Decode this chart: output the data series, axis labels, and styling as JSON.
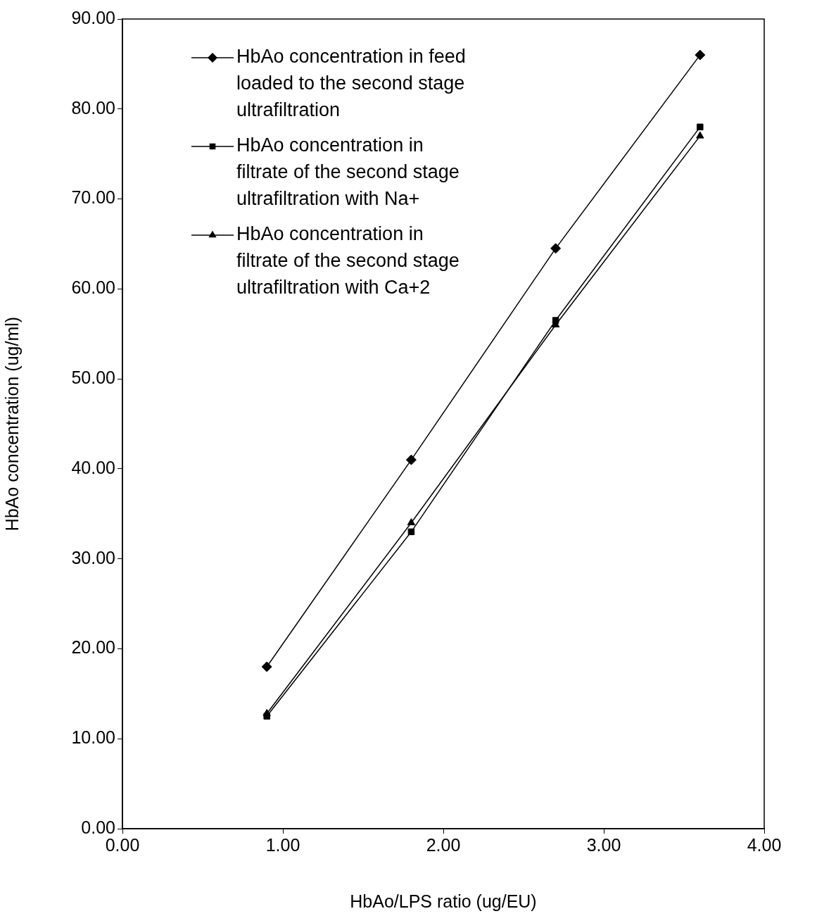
{
  "chart_data": {
    "type": "line",
    "xlabel": "HbAo/LPS ratio (ug/EU)",
    "ylabel": "HbAo concentration (ug/ml)",
    "xlim": [
      0,
      4
    ],
    "xticks": [
      {
        "value": 0,
        "label": "0.00"
      },
      {
        "value": 1,
        "label": "1.00"
      },
      {
        "value": 2,
        "label": "2.00"
      },
      {
        "value": 3,
        "label": "3.00"
      },
      {
        "value": 4,
        "label": "4.00"
      }
    ],
    "ylim": [
      0,
      90
    ],
    "yticks": [
      {
        "value": 0,
        "label": "0.00"
      },
      {
        "value": 10,
        "label": "10.00"
      },
      {
        "value": 20,
        "label": "20.00"
      },
      {
        "value": 30,
        "label": "30.00"
      },
      {
        "value": 40,
        "label": "40.00"
      },
      {
        "value": 50,
        "label": "50.00"
      },
      {
        "value": 60,
        "label": "60.00"
      },
      {
        "value": 70,
        "label": "70.00"
      },
      {
        "value": 80,
        "label": "80.00"
      },
      {
        "value": 90,
        "label": "90.00"
      }
    ],
    "x": [
      0.9,
      1.8,
      2.7,
      3.6
    ],
    "grid": false,
    "legend": "top left",
    "line_style": "solid",
    "series": [
      {
        "name": "HbAo concentration in feed loaded to the second stage ultrafiltration",
        "color": "#000000",
        "marker": "diamond",
        "values": [
          18,
          41,
          64.5,
          86
        ]
      },
      {
        "name": "HbAo concentration in filtrate of the second stage ultrafiltration with Na+",
        "color": "#000000",
        "marker": "square",
        "values": [
          12.5,
          33,
          56.5,
          78
        ]
      },
      {
        "name": "HbAo concentration in filtrate of the second stage ultrafiltration with Ca+2",
        "color": "#000000",
        "marker": "triangle",
        "values": [
          12.8,
          34,
          56,
          77
        ]
      }
    ]
  }
}
